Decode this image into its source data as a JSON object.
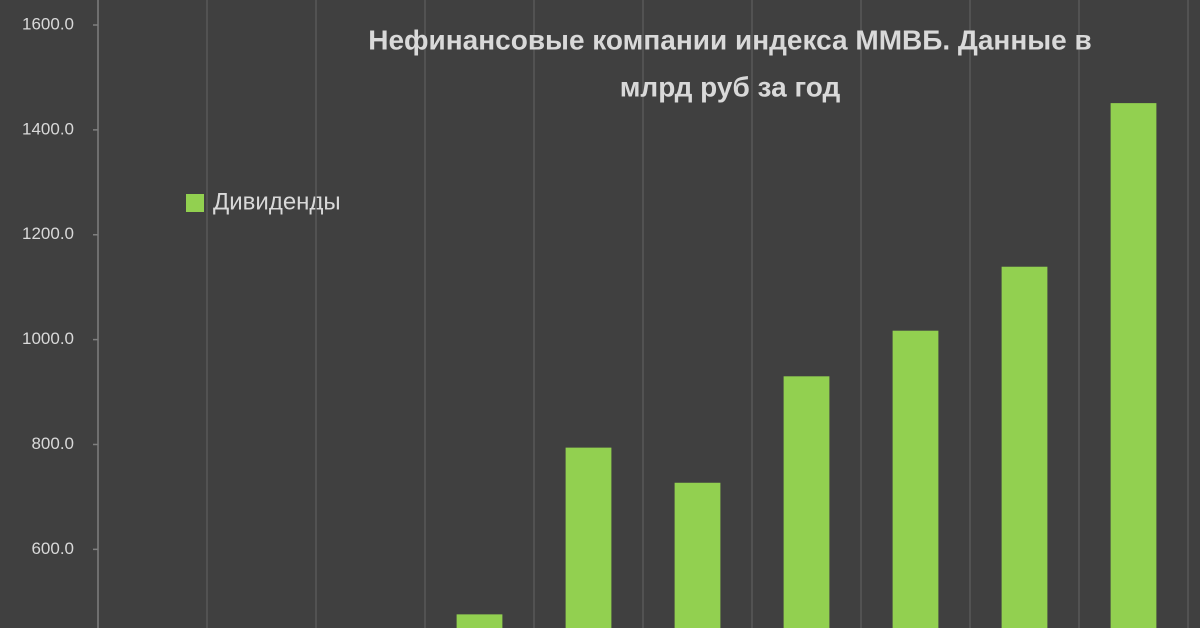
{
  "chart_data": {
    "type": "bar",
    "title_lines": [
      "Нефинансовые компании индекса ММВБ. Данные в",
      "млрд руб за год"
    ],
    "categories": [
      null,
      null,
      null,
      null,
      null,
      null,
      null,
      null,
      null,
      null
    ],
    "series": [
      {
        "name": "Дивиденды",
        "color": "#92d050",
        "values": [
          null,
          null,
          null,
          476,
          794,
          727,
          930,
          1017,
          1139,
          1451
        ]
      }
    ],
    "ylim": [
      450,
      1600
    ],
    "yticks": [
      {
        "value": 600,
        "label": "600.0"
      },
      {
        "value": 800,
        "label": "800.0"
      },
      {
        "value": 1000,
        "label": "1000.0"
      },
      {
        "value": 1200,
        "label": "1200.0"
      },
      {
        "value": 1400,
        "label": "1400.0"
      },
      {
        "value": 1600,
        "label": "1600.0"
      }
    ],
    "legend": "upper left"
  }
}
